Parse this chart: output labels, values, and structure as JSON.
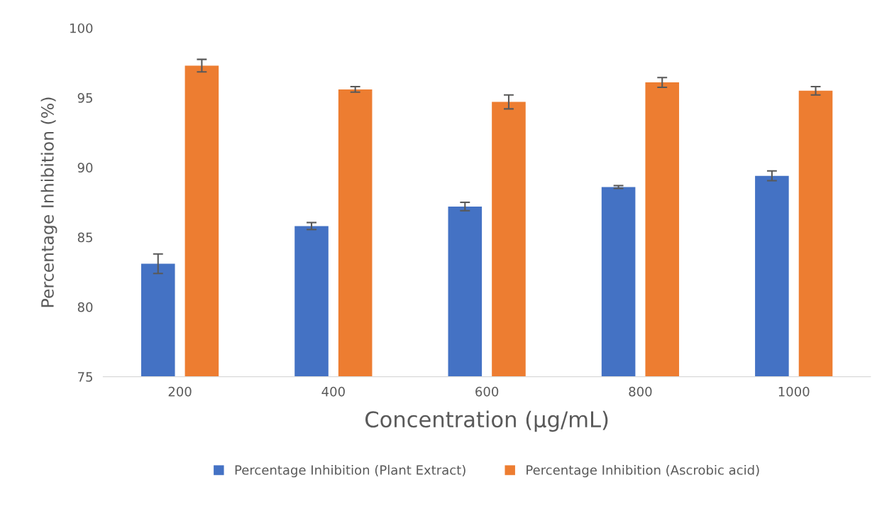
{
  "chart_data": {
    "type": "bar",
    "xlabel": "Concentration (µg/mL)",
    "ylabel": "Percentage Inhibition (%)",
    "categories": [
      "200",
      "400",
      "600",
      "800",
      "1000"
    ],
    "series": [
      {
        "name": "Percentage Inhibition (Plant Extract)",
        "color": "#4472c4",
        "values": [
          83.1,
          85.8,
          87.2,
          88.6,
          89.4
        ],
        "errors": [
          0.7,
          0.25,
          0.3,
          0.1,
          0.35
        ]
      },
      {
        "name": "Percentage Inhibition (Ascrobic acid)",
        "color": "#ed7d31",
        "values": [
          97.3,
          95.6,
          94.7,
          96.1,
          95.5
        ],
        "errors": [
          0.45,
          0.2,
          0.5,
          0.35,
          0.3
        ]
      }
    ],
    "ylim": [
      75,
      100
    ],
    "yticks": [
      75,
      80,
      85,
      90,
      95,
      100
    ],
    "grid": false,
    "legend": "bottom"
  }
}
